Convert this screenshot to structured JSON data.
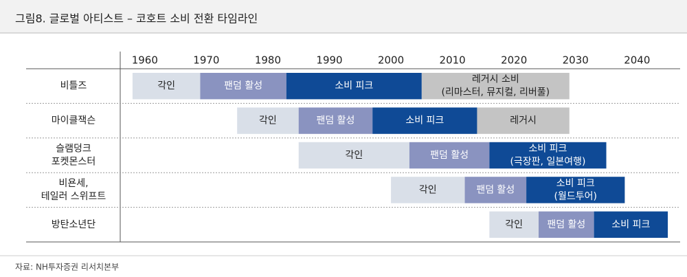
{
  "chart_data": {
    "type": "timeline",
    "title": "그림8. 글로벌 아티스트 – 코호트 소비 전환 타임라인",
    "source": "자료: NH투자증권 리서치본부",
    "xlim": [
      1956,
      2047
    ],
    "xticks": [
      1960,
      1970,
      1980,
      1990,
      2000,
      2010,
      2020,
      2030,
      2040
    ],
    "rows": [
      {
        "name": [
          "비틀즈"
        ],
        "segments": [
          {
            "label": [
              "각인"
            ],
            "start": 1958,
            "end": 1969,
            "color": "#d9dfe8"
          },
          {
            "label": [
              "팬덤 활성"
            ],
            "start": 1969,
            "end": 1983,
            "color": "#8a93c0"
          },
          {
            "label": [
              "소비 피크"
            ],
            "start": 1983,
            "end": 2005,
            "color": "#0f4a96"
          },
          {
            "label": [
              "레거시 소비",
              "(리마스터, 뮤지컬, 리버풀)"
            ],
            "start": 2005,
            "end": 2029,
            "color": "#c4c4c4"
          }
        ]
      },
      {
        "name": [
          "마이클잭슨"
        ],
        "segments": [
          {
            "label": [
              "각인"
            ],
            "start": 1975,
            "end": 1985,
            "color": "#d9dfe8"
          },
          {
            "label": [
              "팬덤 활성"
            ],
            "start": 1985,
            "end": 1997,
            "color": "#8a93c0"
          },
          {
            "label": [
              "소비 피크"
            ],
            "start": 1997,
            "end": 2014,
            "color": "#0f4a96"
          },
          {
            "label": [
              "레거시"
            ],
            "start": 2014,
            "end": 2029,
            "color": "#c4c4c4"
          }
        ]
      },
      {
        "name": [
          "슬램덩크",
          "포켓몬스터"
        ],
        "segments": [
          {
            "label": [
              "각인"
            ],
            "start": 1985,
            "end": 2003,
            "color": "#d9dfe8"
          },
          {
            "label": [
              "팬덤 활성"
            ],
            "start": 2003,
            "end": 2016,
            "color": "#8a93c0"
          },
          {
            "label": [
              "소비 피크",
              "(극장판, 일본여행)"
            ],
            "start": 2016,
            "end": 2035,
            "color": "#0f4a96"
          }
        ]
      },
      {
        "name": [
          "비욘세,",
          "테일러 스위프트"
        ],
        "segments": [
          {
            "label": [
              "각인"
            ],
            "start": 2000,
            "end": 2012,
            "color": "#d9dfe8"
          },
          {
            "label": [
              "팬덤 활성"
            ],
            "start": 2012,
            "end": 2022,
            "color": "#8a93c0"
          },
          {
            "label": [
              "소비 피크",
              "(월드투어)"
            ],
            "start": 2022,
            "end": 2038,
            "color": "#0f4a96"
          }
        ]
      },
      {
        "name": [
          "방탄소년단"
        ],
        "segments": [
          {
            "label": [
              "각인"
            ],
            "start": 2016,
            "end": 2024,
            "color": "#d9dfe8"
          },
          {
            "label": [
              "팬덤 활성"
            ],
            "start": 2024,
            "end": 2033,
            "color": "#8a93c0"
          },
          {
            "label": [
              "소비 피크"
            ],
            "start": 2033,
            "end": 2045,
            "color": "#0f4a96"
          }
        ]
      }
    ]
  }
}
